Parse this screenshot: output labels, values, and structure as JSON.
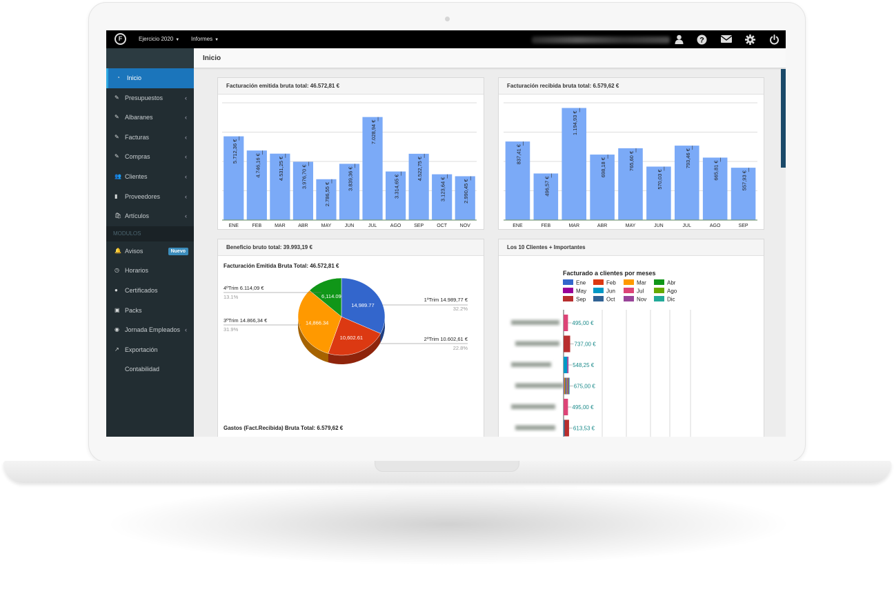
{
  "topbar": {
    "nav1": "Ejercicio 2020",
    "nav2": "Informes"
  },
  "sidebar": {
    "items": [
      {
        "label": "Inicio",
        "icon": "dashboard-icon"
      },
      {
        "label": "Presupuestos",
        "icon": "edit-icon"
      },
      {
        "label": "Albaranes",
        "icon": "edit-icon"
      },
      {
        "label": "Facturas",
        "icon": "edit-icon"
      },
      {
        "label": "Compras",
        "icon": "edit-icon"
      },
      {
        "label": "Clientes",
        "icon": "users-icon"
      },
      {
        "label": "Proveedores",
        "icon": "bar-chart-icon"
      },
      {
        "label": "Artículos",
        "icon": "shopping-bag-icon"
      }
    ],
    "modules_header": "MODULOS",
    "modules": [
      {
        "label": "Avisos",
        "icon": "bell-icon",
        "badge": "Nuevo"
      },
      {
        "label": "Horarios",
        "icon": "clock-icon"
      },
      {
        "label": "Certificados",
        "icon": "circle-icon"
      },
      {
        "label": "Packs",
        "icon": "briefcase-icon"
      },
      {
        "label": "Jornada Empleados",
        "icon": "user-circle-icon"
      },
      {
        "label": "Exportación Contabilidad",
        "icon": "external-link-icon"
      }
    ]
  },
  "page": {
    "title": "Inicio"
  },
  "panels": {
    "emitida_title": "Facturación emitida bruta total: 46.572,81 €",
    "recibida_title": "Facturación recibida bruta total: 6.579,62 €",
    "beneficio_title": "Beneficio bruto total: 39.993,19 €",
    "clientes_title": "Los 10 Clientes + Importantes"
  },
  "chart_data": [
    {
      "type": "bar",
      "title": "Facturación emitida bruta total: 46.572,81 €",
      "categories": [
        "ENE",
        "FEB",
        "MAR",
        "ABR",
        "MAY",
        "JUN",
        "JUL",
        "AGO",
        "SEP",
        "OCT",
        "NOV"
      ],
      "values": [
        5712.36,
        4746.16,
        4531.25,
        3976.7,
        2786.55,
        3839.36,
        7028.94,
        3314.65,
        4522.75,
        3123.64,
        2990.45
      ],
      "labels": [
        "5.712,36 €",
        "4.746,16 €",
        "4.531,25 €",
        "3.976,70 €",
        "2.786,55 €",
        "3.839,36 €",
        "7.028,94 €",
        "3.314,65 €",
        "4.522,75 €",
        "3.123,64 €",
        "2.990,45 €"
      ],
      "ylim": [
        0,
        8000
      ],
      "grid": true,
      "color": "#7baaf7"
    },
    {
      "type": "bar",
      "title": "Facturación recibida bruta total: 6.579,62 €",
      "categories": [
        "ENE",
        "FEB",
        "MAR",
        "ABR",
        "MAY",
        "JUN",
        "JUL",
        "AGO",
        "SEP"
      ],
      "values": [
        837.41,
        496.57,
        1194.93,
        698.18,
        765.6,
        570.03,
        793.46,
        665.81,
        557.93
      ],
      "labels": [
        "837,41 €",
        "496,57 €",
        "1.194,93 €",
        "698,18 €",
        "765,60 €",
        "570,03 €",
        "793,46 €",
        "665,81 €",
        "557,93 €"
      ],
      "ylim": [
        0,
        1250
      ],
      "grid": true,
      "color": "#7baaf7"
    },
    {
      "type": "pie",
      "title": "Facturación Emitida Bruta Total: 46.572,81 €",
      "slices": [
        {
          "name": "1ºTrim",
          "value": 14989.77,
          "inner": "14,989.77",
          "label": "1ºTrim 14.989,77 €",
          "pct": "32.2%",
          "color": "#3366cc"
        },
        {
          "name": "2ºTrim",
          "value": 10602.61,
          "inner": "10,602.61",
          "label": "2ºTrim 10.602,61 €",
          "pct": "22.8%",
          "color": "#dc3912"
        },
        {
          "name": "3ºTrim",
          "value": 14866.34,
          "inner": "14,866.34",
          "label": "3ºTrim 14.866,34 €",
          "pct": "31.9%",
          "color": "#ff9900"
        },
        {
          "name": "4ºTrim",
          "value": 6114.09,
          "inner": "6,114.09",
          "label": "4ºTrim 6.114,09 €",
          "pct": "13.1%",
          "color": "#109618"
        }
      ]
    },
    {
      "type": "pie",
      "title": "Gastos (Fact.Recibida) Bruta Total: 6.579,62 €",
      "slices": [
        {
          "color": "#3366cc"
        },
        {
          "color": "#ff9900"
        }
      ]
    },
    {
      "type": "bar",
      "orientation": "horizontal",
      "stacked": true,
      "title": "Facturado a clientes por meses",
      "legend": [
        {
          "name": "Ene",
          "color": "#3366cc"
        },
        {
          "name": "Feb",
          "color": "#dc3912"
        },
        {
          "name": "Mar",
          "color": "#ff9900"
        },
        {
          "name": "Abr",
          "color": "#109618"
        },
        {
          "name": "May",
          "color": "#990099"
        },
        {
          "name": "Jun",
          "color": "#0099c6"
        },
        {
          "name": "Jul",
          "color": "#dd4477"
        },
        {
          "name": "Ago",
          "color": "#66aa00"
        },
        {
          "name": "Sep",
          "color": "#b82e2e"
        },
        {
          "name": "Oct",
          "color": "#316395"
        },
        {
          "name": "Nov",
          "color": "#994499"
        },
        {
          "name": "Dic",
          "color": "#22aa99"
        }
      ],
      "rows": [
        {
          "total": 495.0,
          "label": "495,00 €",
          "segments": [
            {
              "month": "Jul",
              "value": 495.0
            }
          ]
        },
        {
          "total": 737.0,
          "label": "737,00 €",
          "segments": [
            {
              "month": "Sep",
              "value": 737.0
            }
          ]
        },
        {
          "total": 548.25,
          "label": "548,25 €",
          "segments": [
            {
              "month": "Jun",
              "value": 400.0
            },
            {
              "month": "Nov",
              "value": 148.25
            }
          ]
        },
        {
          "total": 675.0,
          "label": "675,00 €",
          "segments": [
            {
              "month": "Ene",
              "value": 56.25
            },
            {
              "month": "Feb",
              "value": 56.25
            },
            {
              "month": "Mar",
              "value": 56.25
            },
            {
              "month": "Abr",
              "value": 56.25
            },
            {
              "month": "May",
              "value": 56.25
            },
            {
              "month": "Jun",
              "value": 56.25
            },
            {
              "month": "Jul",
              "value": 56.25
            },
            {
              "month": "Ago",
              "value": 56.25
            },
            {
              "month": "Sep",
              "value": 56.25
            },
            {
              "month": "Oct",
              "value": 56.25
            },
            {
              "month": "Nov",
              "value": 56.25
            },
            {
              "month": "Dic",
              "value": 56.25
            }
          ]
        },
        {
          "total": 495.0,
          "label": "495,00 €",
          "segments": [
            {
              "month": "Jul",
              "value": 495.0
            }
          ]
        },
        {
          "total": 613.53,
          "label": "613,53 €",
          "segments": [
            {
              "month": "Jun",
              "value": 40.0
            },
            {
              "month": "Oct",
              "value": 73.53
            },
            {
              "month": "Sep",
              "value": 500.0
            }
          ]
        }
      ],
      "xlim": [
        0,
        1300
      ]
    }
  ]
}
